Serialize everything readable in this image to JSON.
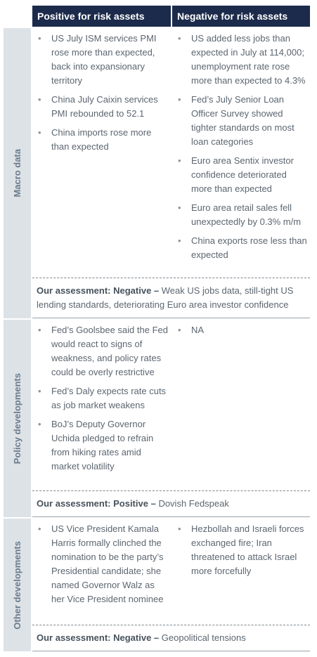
{
  "header": {
    "columns": [
      "Positive for risk assets",
      "Negative for risk assets"
    ]
  },
  "sections": [
    {
      "label": "Macro data",
      "positive": [
        "US July ISM services PMI rose more than expected, back into expansionary territory",
        "China July Caixin services PMI rebounded to 52.1",
        "China imports rose more than expected"
      ],
      "negative": [
        "US added less jobs than expected in July at 114,000; unemployment rate rose more than expected to 4.3%",
        "Fed’s July Senior Loan Officer Survey showed tighter standards on most loan categories",
        "Euro area Sentix investor confidence deteriorated more than expected",
        "Euro area retail sales fell unexpectedly by 0.3% m/m",
        "China exports rose less than expected"
      ],
      "assessment": {
        "label": "Our assessment: Negative –",
        "text": "Weak US jobs data, still-tight US lending standards, deteriorating Euro area investor confidence"
      }
    },
    {
      "label": "Policy developments",
      "positive": [
        "Fed’s Goolsbee said the Fed would react to signs of weakness, and policy rates could be overly restrictive",
        "Fed’s Daly expects rate cuts as job market weakens",
        "BoJ’s Deputy Governor Uchida pledged to refrain from hiking rates amid market volatility"
      ],
      "negative": [
        "NA"
      ],
      "assessment": {
        "label": "Our assessment: Positive –",
        "text": "Dovish Fedspeak"
      }
    },
    {
      "label": "Other developments",
      "positive": [
        "US Vice President Kamala Harris formally clinched the nomination to be the party’s Presidential candidate; she named Governor Walz as her Vice President nominee"
      ],
      "negative": [
        "Hezbollah and Israeli forces exchanged fire; Iran threatened to attack Israel more forcefully"
      ],
      "assessment": {
        "label": "Our assessment: Negative –",
        "text": "Geopolitical tensions"
      }
    }
  ]
}
